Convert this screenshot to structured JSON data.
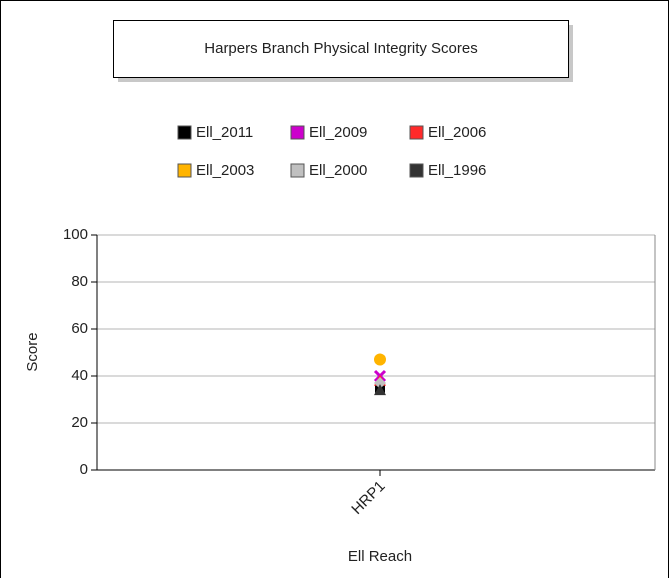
{
  "chart_data": {
    "type": "scatter",
    "title": "Harpers Branch Physical Integrity Scores",
    "x_label": "Ell Reach",
    "y_label": "Score",
    "categories": [
      "HRP1"
    ],
    "series": [
      {
        "name": "Ell_2011",
        "color": "#000000",
        "marker": "square",
        "values": [
          35
        ]
      },
      {
        "name": "Ell_2009",
        "color": "#cc00cc",
        "marker": "x",
        "values": [
          40
        ]
      },
      {
        "name": "Ell_2006",
        "color": "#ff2a2a",
        "marker": "triangle",
        "values": [
          38
        ]
      },
      {
        "name": "Ell_2003",
        "color": "#ffb400",
        "marker": "circle",
        "values": [
          47
        ]
      },
      {
        "name": "Ell_2000",
        "color": "#c0c0c0",
        "marker": "diamond",
        "values": [
          37
        ]
      },
      {
        "name": "Ell_1996",
        "color": "#333333",
        "marker": "triangle",
        "values": [
          34
        ]
      }
    ],
    "ylim": [
      0,
      100
    ],
    "yticks": [
      0,
      20,
      40,
      60,
      80,
      100
    ],
    "grid": true
  }
}
